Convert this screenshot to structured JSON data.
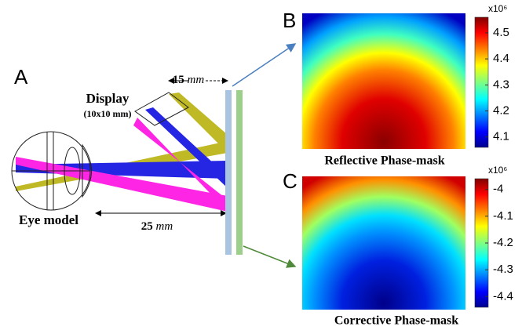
{
  "panels": {
    "a": {
      "label": "A",
      "display_title": "Display",
      "display_size": "(10x10 mm)",
      "distance_display": {
        "value": "15",
        "unit": "mm"
      },
      "distance_eye": {
        "value": "25",
        "unit": "mm"
      },
      "eye_label": "Eye model"
    },
    "b": {
      "label": "B",
      "caption": "Reflective Phase-mask",
      "colorbar": {
        "multiplier": "x10⁶",
        "range": [
          4.06,
          4.56
        ],
        "ticks": [
          4.1,
          4.2,
          4.3,
          4.4,
          4.5
        ]
      }
    },
    "c": {
      "label": "C",
      "caption": "Corrective Phase-mask",
      "colorbar": {
        "multiplier": "x10⁶",
        "range": [
          -4.44,
          -3.96
        ],
        "ticks": [
          -4.4,
          -4.3,
          -4.2,
          -4.1,
          -4
        ]
      }
    }
  }
}
